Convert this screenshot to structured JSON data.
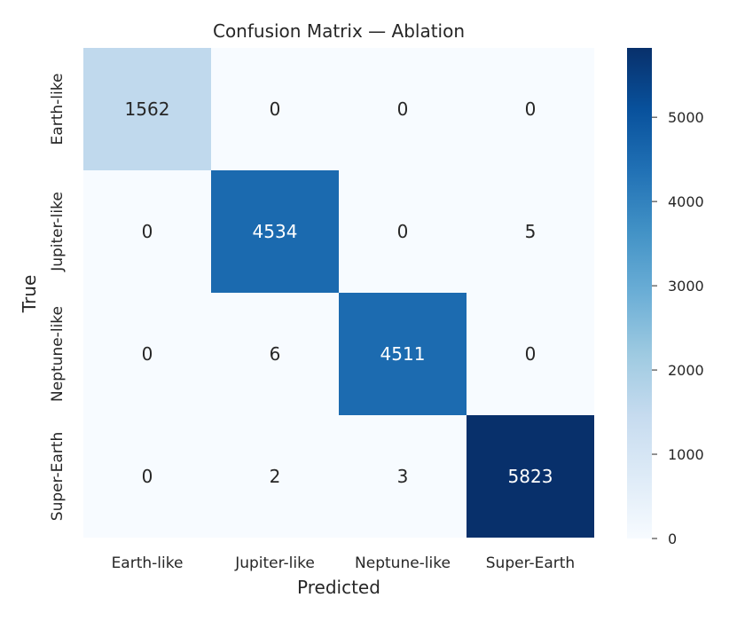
{
  "chart_data": {
    "type": "heatmap",
    "title": "Confusion Matrix — Ablation",
    "xlabel": "Predicted",
    "ylabel": "True",
    "x_categories": [
      "Earth-like",
      "Jupiter-like",
      "Neptune-like",
      "Super-Earth"
    ],
    "y_categories": [
      "Earth-like",
      "Jupiter-like",
      "Neptune-like",
      "Super-Earth"
    ],
    "values": [
      [
        1562,
        0,
        0,
        0
      ],
      [
        0,
        4534,
        0,
        5
      ],
      [
        0,
        6,
        4511,
        0
      ],
      [
        0,
        2,
        3,
        5823
      ]
    ],
    "colormap": "Blues",
    "colorbar": {
      "range": [
        0,
        5823
      ],
      "ticks": [
        0,
        1000,
        2000,
        3000,
        4000,
        5000
      ]
    },
    "colors": {
      "low": "#f7fbff",
      "high": "#08306b"
    }
  }
}
